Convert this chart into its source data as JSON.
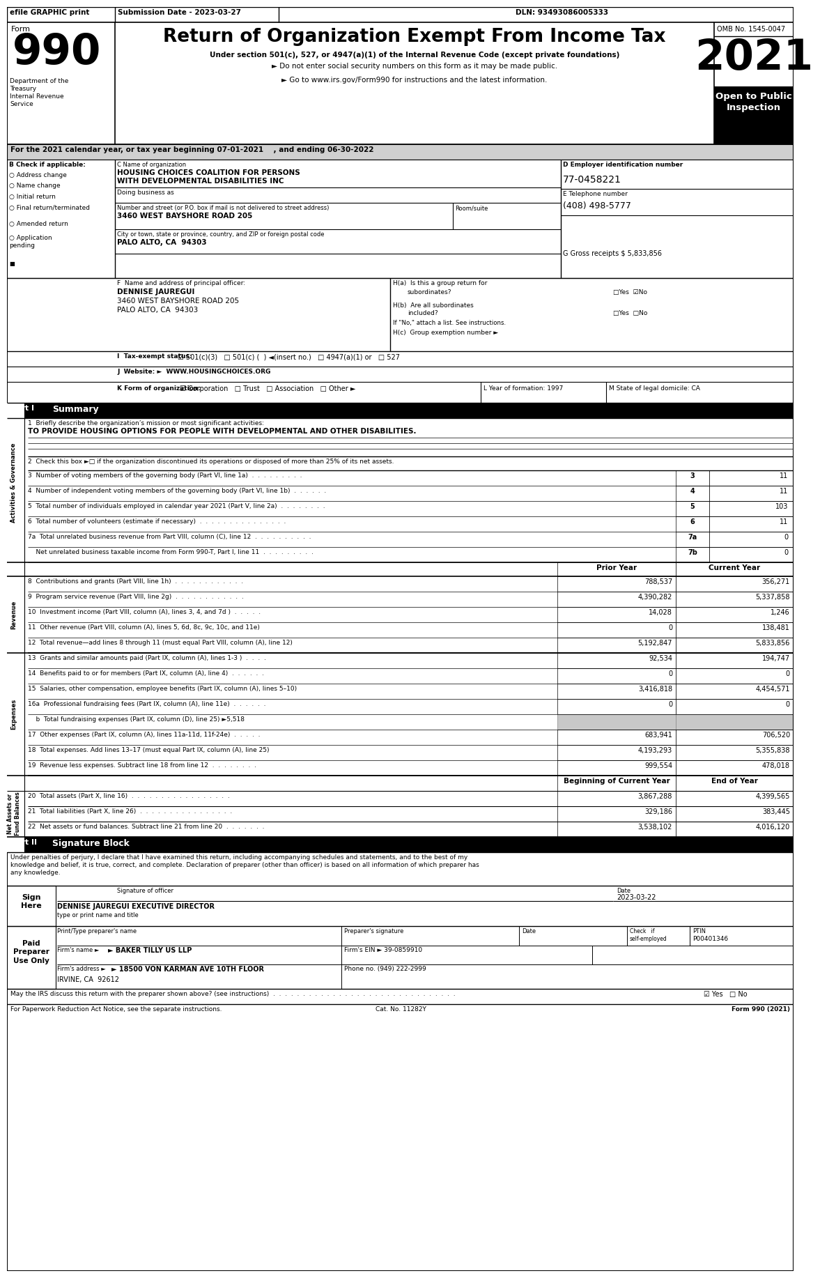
{
  "title": "Return of Organization Exempt From Income Tax",
  "subtitle1": "Under section 501(c), 527, or 4947(a)(1) of the Internal Revenue Code (except private foundations)",
  "subtitle2": "► Do not enter social security numbers on this form as it may be made public.",
  "subtitle3": "► Go to www.irs.gov/Form990 for instructions and the latest information.",
  "form_number": "990",
  "year": "2021",
  "omb": "OMB No. 1545-0047",
  "open_to_public": "Open to Public\nInspection",
  "efile": "efile GRAPHIC print",
  "submission_date": "Submission Date - 2023-03-27",
  "dln": "DLN: 93493086005333",
  "dept": "Department of the\nTreasury\nInternal Revenue\nService",
  "tax_year": "For the 2021 calendar year, or tax year beginning 07-01-2021    , and ending 06-30-2022",
  "check_label": "B Check if applicable:",
  "checkboxes_b": [
    "Address change",
    "Name change",
    "Initial return",
    "Final return/terminated",
    "Amended return",
    "Application\npending"
  ],
  "c_label": "C Name of organization",
  "org_name_1": "HOUSING CHOICES COALITION FOR PERSONS",
  "org_name_2": "WITH DEVELOPMENTAL DISABILITIES INC",
  "doing_business": "Doing business as",
  "address_label": "Number and street (or P.O. box if mail is not delivered to street address)",
  "address": "3460 WEST BAYSHORE ROAD 205",
  "room_suite": "Room/suite",
  "city_label": "City or town, state or province, country, and ZIP or foreign postal code",
  "city": "PALO ALTO, CA  94303",
  "d_label": "D Employer identification number",
  "ein": "77-0458221",
  "e_label": "E Telephone number",
  "phone": "(408) 498-5777",
  "g_label": "G Gross receipts $ 5,833,856",
  "f_label": "F  Name and address of principal officer:",
  "officer_name": "DENNISE JAUREGUI",
  "officer_address": "3460 WEST BAYSHORE ROAD 205",
  "officer_city": "PALO ALTO, CA  94303",
  "ha_label": "H(a)  Is this a group return for",
  "hb_label": "H(b)  Are all subordinates",
  "hb_note": "If \"No,\" attach a list. See instructions.",
  "hc_label": "H(c)  Group exemption number ►",
  "i_label": "I  Tax-exempt status:",
  "tax_exempt": "☑ 501(c)(3)   □ 501(c) (  ) ◄(insert no.)   □ 4947(a)(1) or   □ 527",
  "j_label": "J  Website: ►  WWW.HOUSINGCHOICES.ORG",
  "k_label": "K Form of organization:",
  "k_options": "☑ Corporation   □ Trust   □ Association   □ Other ►",
  "l_label": "L Year of formation: 1997",
  "m_label": "M State of legal domicile: CA",
  "part1_label": "Part I",
  "part1_title": "Summary",
  "line1_label": "1  Briefly describe the organization’s mission or most significant activities:",
  "mission": "TO PROVIDE HOUSING OPTIONS FOR PEOPLE WITH DEVELOPMENTAL AND OTHER DISABILITIES.",
  "line2": "2  Check this box ►□ if the organization discontinued its operations or disposed of more than 25% of its net assets.",
  "lines_37": [
    [
      "3  Number of voting members of the governing body (Part VI, line 1a)  .  .  .  .  .  .  .  .  .",
      "3",
      "11"
    ],
    [
      "4  Number of independent voting members of the governing body (Part VI, line 1b)  .  .  .  .  .  .",
      "4",
      "11"
    ],
    [
      "5  Total number of individuals employed in calendar year 2021 (Part V, line 2a)  .  .  .  .  .  .  .  .",
      "5",
      "103"
    ],
    [
      "6  Total number of volunteers (estimate if necessary)  .  .  .  .  .  .  .  .  .  .  .  .  .  .  .",
      "6",
      "11"
    ],
    [
      "7a  Total unrelated business revenue from Part VIII, column (C), line 12  .  .  .  .  .  .  .  .  .  .",
      "7a",
      "0"
    ],
    [
      "    Net unrelated business taxable income from Form 990-T, Part I, line 11  .  .  .  .  .  .  .  .  .",
      "7b",
      "0"
    ]
  ],
  "col_prior": "Prior Year",
  "col_current": "Current Year",
  "rev_rows": [
    [
      "8  Contributions and grants (Part VIII, line 1h)  .  .  .  .  .  .  .  .  .  .  .  .",
      "788,537",
      "356,271"
    ],
    [
      "9  Program service revenue (Part VIII, line 2g)  .  .  .  .  .  .  .  .  .  .  .  .",
      "4,390,282",
      "5,337,858"
    ],
    [
      "10  Investment income (Part VIII, column (A), lines 3, 4, and 7d )  .  .  .  .  .",
      "14,028",
      "1,246"
    ],
    [
      "11  Other revenue (Part VIII, column (A), lines 5, 6d, 8c, 9c, 10c, and 11e)",
      "0",
      "138,481"
    ],
    [
      "12  Total revenue—add lines 8 through 11 (must equal Part VIII, column (A), line 12)",
      "5,192,847",
      "5,833,856"
    ]
  ],
  "exp_rows": [
    [
      "13  Grants and similar amounts paid (Part IX, column (A), lines 1-3 )  .  .  .  .",
      "92,534",
      "194,747",
      false
    ],
    [
      "14  Benefits paid to or for members (Part IX, column (A), line 4)  .  .  .  .  .  .",
      "0",
      "0",
      false
    ],
    [
      "15  Salaries, other compensation, employee benefits (Part IX, column (A), lines 5–10)",
      "3,416,818",
      "4,454,571",
      false
    ],
    [
      "16a  Professional fundraising fees (Part IX, column (A), line 11e)  .  .  .  .  .  .",
      "0",
      "0",
      false
    ],
    [
      "    b  Total fundraising expenses (Part IX, column (D), line 25) ►5,518",
      "",
      "",
      true
    ],
    [
      "17  Other expenses (Part IX, column (A), lines 11a-11d, 11f-24e)  .  .  .  .  .",
      "683,941",
      "706,520",
      false
    ],
    [
      "18  Total expenses. Add lines 13–17 (must equal Part IX, column (A), line 25)",
      "4,193,293",
      "5,355,838",
      false
    ],
    [
      "19  Revenue less expenses. Subtract line 18 from line 12  .  .  .  .  .  .  .  .",
      "999,554",
      "478,018",
      false
    ]
  ],
  "net_header_left": "Beginning of Current Year",
  "net_header_right": "End of Year",
  "net_rows": [
    [
      "20  Total assets (Part X, line 16)  .  .  .  .  .  .  .  .  .  .  .  .  .  .  .  .  .",
      "3,867,288",
      "4,399,565"
    ],
    [
      "21  Total liabilities (Part X, line 26)  .  .  .  .  .  .  .  .  .  .  .  .  .  .  .  .",
      "329,186",
      "383,445"
    ],
    [
      "22  Net assets or fund balances. Subtract line 21 from line 20  .  .  .  .  .  .  .",
      "3,538,102",
      "4,016,120"
    ]
  ],
  "part2_label": "Part II",
  "part2_title": "Signature Block",
  "sig_text": "Under penalties of perjury, I declare that I have examined this return, including accompanying schedules and statements, and to the best of my\nknowledge and belief, it is true, correct, and complete. Declaration of preparer (other than officer) is based on all information of which preparer has\nany knowledge.",
  "sig_date_label": "Date",
  "sig_date": "2023-03-22",
  "sig_officer": "DENNISE JAUREGUI EXECUTIVE DIRECTOR",
  "sig_type": "type or print name and title",
  "preparer_name_label": "Print/Type preparer's name",
  "preparer_sig_label": "Preparer's signature",
  "preparer_date_label": "Date",
  "preparer_check_label": "Check   if\nself-employed",
  "preparer_ptin_label": "PTIN",
  "preparer_ptin": "P00401346",
  "preparer_firm_label": "Firm's name",
  "preparer_firm": "► BAKER TILLY US LLP",
  "preparer_ein_label": "Firm's EIN ► 39-0859910",
  "preparer_addr_label": "Firm's address",
  "preparer_addr": "► 18500 VON KARMAN AVE 10TH FLOOR",
  "preparer_city": "IRVINE, CA  92612",
  "preparer_phone": "Phone no. (949) 222-2999",
  "irs_discuss": "May the IRS discuss this return with the preparer shown above? (see instructions)  .  .  .  .  .  .  .  .  .  .  .  .  .  .  .  .  .  .  .  .  .  .  .  .  .  .  .  .  .  .  .",
  "irs_discuss_ans": "☑ Yes   □ No",
  "footer_left": "For Paperwork Reduction Act Notice, see the separate instructions.",
  "footer_cat": "Cat. No. 11282Y",
  "footer_right": "Form 990 (2021)"
}
